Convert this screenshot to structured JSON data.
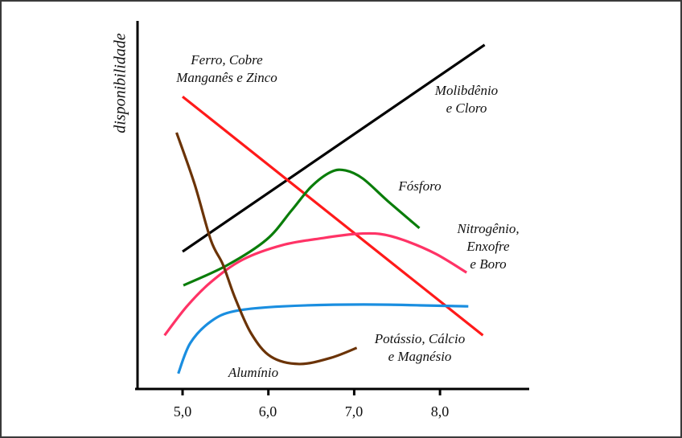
{
  "chart_data": {
    "type": "line",
    "ylabel": "disponibilidade",
    "xlabel": "",
    "xticks": [
      "5,0",
      "6,0",
      "7,0",
      "8,0"
    ],
    "xtick_values": [
      5,
      6,
      7,
      8
    ],
    "xlim": [
      4.45,
      9.0
    ],
    "ylim": [
      0,
      100
    ],
    "grid": false,
    "series": [
      {
        "name": "Molibdênio e Cloro",
        "color": "#000000",
        "label_lines": [
          "Molibdênio",
          "e Cloro"
        ],
        "points": [
          [
            5.0,
            37.4
          ],
          [
            8.52,
            93.7
          ]
        ],
        "straight": true
      },
      {
        "name": "Ferro, Cobre Manganês e Zinco",
        "color": "#ff1a1a",
        "label_lines": [
          "Ferro, Cobre",
          "Manganês e Zinco"
        ],
        "points": [
          [
            5.0,
            79.6
          ],
          [
            8.5,
            14.6
          ]
        ],
        "straight": true
      },
      {
        "name": "Fósforo",
        "color": "#0a7d0a",
        "label_lines": [
          "Fósforo"
        ],
        "points": [
          [
            5.01,
            28.2
          ],
          [
            5.52,
            33.7
          ],
          [
            5.98,
            40.7
          ],
          [
            6.27,
            48.6
          ],
          [
            6.5,
            55.1
          ],
          [
            6.73,
            59.1
          ],
          [
            6.9,
            59.5
          ],
          [
            7.1,
            57.3
          ],
          [
            7.39,
            51.2
          ],
          [
            7.76,
            43.8
          ]
        ]
      },
      {
        "name": "Nitrogênio, Enxofre e Boro",
        "color": "#ff3366",
        "label_lines": [
          "Nitrogênio,",
          "Enxofre",
          "e Boro"
        ],
        "points": [
          [
            4.79,
            14.6
          ],
          [
            5.05,
            22.5
          ],
          [
            5.33,
            29.1
          ],
          [
            5.7,
            35.2
          ],
          [
            6.17,
            39.2
          ],
          [
            6.64,
            41.1
          ],
          [
            7.01,
            42.2
          ],
          [
            7.3,
            42.2
          ],
          [
            7.58,
            40.5
          ],
          [
            7.95,
            36.8
          ],
          [
            8.31,
            31.7
          ]
        ]
      },
      {
        "name": "Potássio, Cálcio e Magnésio",
        "color": "#1a8ee0",
        "label_lines": [
          "Potássio, Cálcio",
          "e Magnésio"
        ],
        "points": [
          [
            4.95,
            4.2
          ],
          [
            5.09,
            12.5
          ],
          [
            5.33,
            18.4
          ],
          [
            5.61,
            21.2
          ],
          [
            6.17,
            22.5
          ],
          [
            7.11,
            23.0
          ],
          [
            8.33,
            22.5
          ]
        ]
      },
      {
        "name": "Alumínio",
        "color": "#6b3306",
        "label_lines": [
          "Alumínio"
        ],
        "points": [
          [
            4.93,
            69.8
          ],
          [
            5.14,
            55.8
          ],
          [
            5.33,
            40.5
          ],
          [
            5.47,
            33.9
          ],
          [
            5.61,
            24.9
          ],
          [
            5.8,
            15.1
          ],
          [
            6.03,
            8.8
          ],
          [
            6.36,
            6.8
          ],
          [
            6.73,
            8.5
          ],
          [
            7.03,
            11.2
          ]
        ]
      }
    ]
  }
}
